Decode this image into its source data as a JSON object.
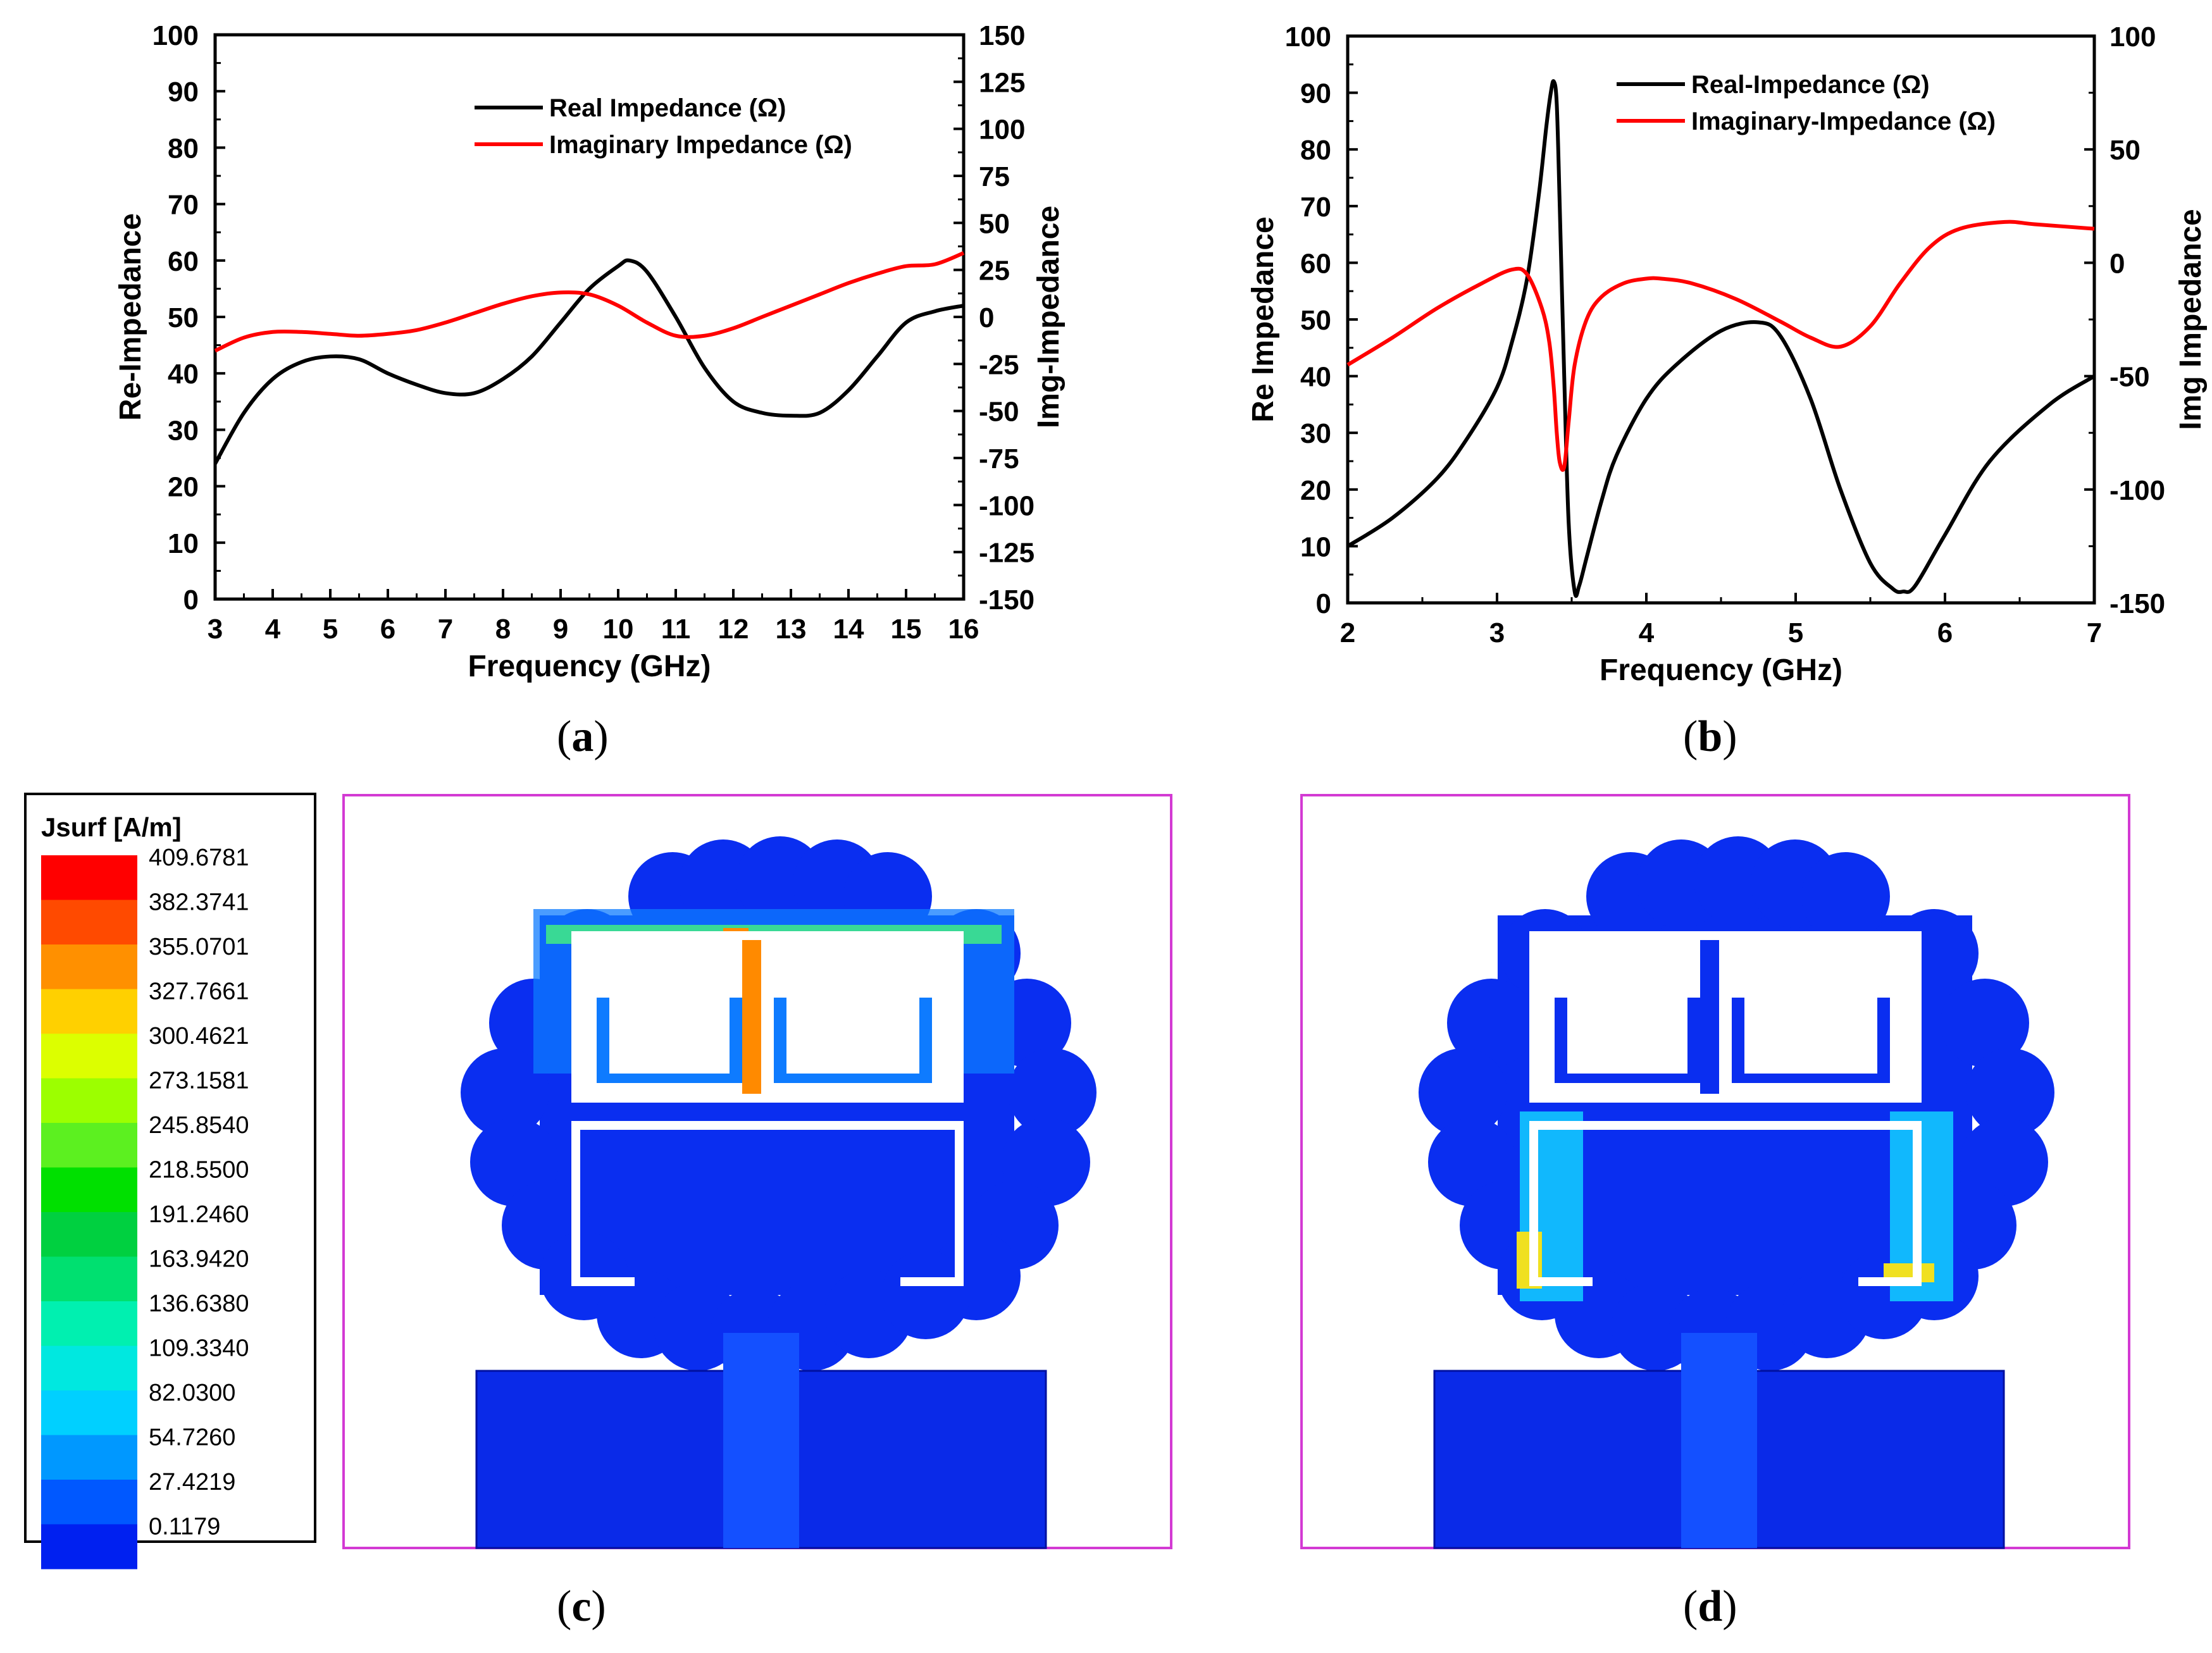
{
  "panel_labels": {
    "a": "a",
    "b": "b",
    "c": "c",
    "d": "d"
  },
  "chart_data": [
    {
      "type": "line",
      "panel": "a",
      "xlabel": "Frequency (GHz)",
      "ylabel": "Re-Impedance",
      "y2label": "Img-Impedance",
      "xlim": [
        3,
        16
      ],
      "ylim": [
        0,
        100
      ],
      "y2lim": [
        -150,
        150
      ],
      "xticks": [
        "3",
        "4",
        "5",
        "6",
        "7",
        "8",
        "9",
        "10",
        "11",
        "12",
        "13",
        "14",
        "15",
        "16"
      ],
      "yticks": [
        "0",
        "10",
        "20",
        "30",
        "40",
        "50",
        "60",
        "70",
        "80",
        "90",
        "100"
      ],
      "y2ticks": [
        "-150",
        "-125",
        "-100",
        "-75",
        "-50",
        "-25",
        "0",
        "25",
        "50",
        "75",
        "100",
        "125",
        "150"
      ],
      "legend": {
        "position": "top-center",
        "entries": [
          "Real Impedance (Ω)",
          "Imaginary Impedance (Ω)"
        ]
      },
      "series": [
        {
          "name": "Real Impedance (Ω)",
          "axis": "left",
          "color": "#000000",
          "x": [
            3,
            3.5,
            4,
            4.5,
            5,
            5.5,
            6,
            6.5,
            7,
            7.5,
            8,
            8.5,
            9,
            9.5,
            10,
            10.2,
            10.5,
            11,
            11.5,
            12,
            12.5,
            13,
            13.5,
            14,
            14.5,
            15,
            15.5,
            16
          ],
          "y": [
            24,
            33,
            39,
            42,
            43,
            42.5,
            40,
            38,
            36.5,
            36.5,
            39,
            43,
            49,
            55,
            59,
            60,
            58,
            50,
            41,
            35,
            33,
            32.5,
            33,
            37,
            43,
            49,
            51,
            52
          ]
        },
        {
          "name": "Imaginary Impedance (Ω)",
          "axis": "right",
          "color": "#ff0000",
          "x": [
            3,
            3.5,
            4,
            4.5,
            5,
            5.5,
            6,
            6.5,
            7,
            7.5,
            8,
            8.5,
            9,
            9.5,
            10,
            10.5,
            11,
            11.5,
            12,
            12.5,
            13,
            13.5,
            14,
            14.5,
            15,
            15.5,
            16
          ],
          "y": [
            -18,
            -11,
            -8,
            -8,
            -9,
            -10,
            -9,
            -7,
            -3,
            2,
            7,
            11,
            13,
            12,
            6,
            -3,
            -10,
            -10,
            -6,
            0,
            6,
            12,
            18,
            23,
            27,
            28,
            34
          ]
        }
      ]
    },
    {
      "type": "line",
      "panel": "b",
      "xlabel": "Frequency (GHz)",
      "ylabel": "Re Impedance",
      "y2label": "Img Impedance",
      "xlim": [
        2,
        7
      ],
      "ylim": [
        0,
        100
      ],
      "y2lim": [
        -150,
        100
      ],
      "xticks": [
        "2",
        "3",
        "4",
        "5",
        "6",
        "7"
      ],
      "yticks": [
        "0",
        "10",
        "20",
        "30",
        "40",
        "50",
        "60",
        "70",
        "80",
        "90",
        "100"
      ],
      "y2ticks": [
        "-150",
        "-100",
        "-50",
        "0",
        "50",
        "100"
      ],
      "legend": {
        "position": "top-center",
        "entries": [
          "Real-Impedance (Ω)",
          "Imaginary-Impedance (Ω)"
        ]
      },
      "series": [
        {
          "name": "Real-Impedance (Ω)",
          "axis": "left",
          "color": "#000000",
          "x": [
            2,
            2.3,
            2.6,
            2.8,
            3,
            3.1,
            3.2,
            3.28,
            3.33,
            3.36,
            3.38,
            3.4,
            3.42,
            3.45,
            3.48,
            3.52,
            3.55,
            3.6,
            3.7,
            3.8,
            4,
            4.2,
            4.5,
            4.75,
            4.9,
            5.1,
            5.3,
            5.5,
            5.65,
            5.72,
            5.8,
            6,
            6.3,
            6.7,
            7
          ],
          "y": [
            10,
            15,
            22,
            29,
            38,
            46,
            57,
            72,
            84,
            90,
            92,
            88,
            70,
            40,
            14,
            2,
            3,
            8,
            18,
            26,
            36,
            42,
            48,
            49.5,
            47,
            36,
            20,
            7,
            2.5,
            2,
            3,
            12,
            25,
            35,
            40
          ]
        },
        {
          "name": "Imaginary-Impedance (Ω)",
          "axis": "right",
          "color": "#ff0000",
          "x": [
            2,
            2.3,
            2.6,
            2.9,
            3.1,
            3.2,
            3.3,
            3.35,
            3.38,
            3.4,
            3.42,
            3.45,
            3.48,
            3.52,
            3.6,
            3.7,
            3.85,
            4,
            4.1,
            4.3,
            4.6,
            4.9,
            5.1,
            5.3,
            5.5,
            5.7,
            5.9,
            6.1,
            6.4,
            6.6,
            7
          ],
          "y": [
            -45,
            -33,
            -20,
            -9,
            -3,
            -5,
            -20,
            -35,
            -55,
            -75,
            -88,
            -90,
            -70,
            -45,
            -25,
            -15,
            -9,
            -7,
            -7,
            -9,
            -16,
            -26,
            -33,
            -37,
            -28,
            -9,
            7,
            15,
            18,
            17,
            15
          ]
        }
      ]
    }
  ],
  "colorbar": {
    "title": "Jsurf [A/m]",
    "labels": [
      "409.6781",
      "382.3741",
      "355.0701",
      "327.7661",
      "300.4621",
      "273.1581",
      "245.8540",
      "218.5500",
      "191.2460",
      "163.9420",
      "136.6380",
      "109.3340",
      "82.0300",
      "54.7260",
      "27.4219",
      "0.1179"
    ],
    "colors": [
      "#ff0000",
      "#ff4a00",
      "#ff9000",
      "#ffd000",
      "#dcff00",
      "#9cff00",
      "#5cf020",
      "#00e000",
      "#00d040",
      "#00e070",
      "#00f0b0",
      "#00e8e0",
      "#00d0ff",
      "#0098ff",
      "#0058ff",
      "#0020f0"
    ]
  },
  "sim_colors": {
    "base": "#0a2ef0",
    "light": "#0e7bff",
    "cyan": "#13d0ff",
    "green": "#3ee68a",
    "yellow": "#f0e020",
    "orange": "#ff8a00",
    "red": "#ff2020",
    "border": "#d33ad3"
  }
}
